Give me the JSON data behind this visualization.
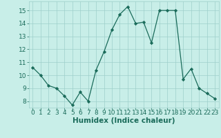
{
  "x": [
    0,
    1,
    2,
    3,
    4,
    5,
    6,
    7,
    8,
    9,
    10,
    11,
    12,
    13,
    14,
    15,
    16,
    17,
    18,
    19,
    20,
    21,
    22,
    23
  ],
  "y": [
    10.6,
    10.0,
    9.2,
    9.0,
    8.4,
    7.7,
    8.7,
    8.0,
    10.4,
    11.8,
    13.5,
    14.7,
    15.3,
    14.0,
    14.1,
    12.5,
    15.0,
    15.0,
    15.0,
    9.7,
    10.5,
    9.0,
    8.6,
    8.2
  ],
  "xlabel": "Humidex (Indice chaleur)",
  "xlim": [
    -0.5,
    23.5
  ],
  "ylim": [
    7.5,
    15.7
  ],
  "yticks": [
    8,
    9,
    10,
    11,
    12,
    13,
    14,
    15
  ],
  "xticks": [
    0,
    1,
    2,
    3,
    4,
    5,
    6,
    7,
    8,
    9,
    10,
    11,
    12,
    13,
    14,
    15,
    16,
    17,
    18,
    19,
    20,
    21,
    22,
    23
  ],
  "line_color": "#1a6b5a",
  "marker_color": "#1a6b5a",
  "bg_color": "#c8eee8",
  "grid_color": "#9ecfca",
  "tick_label_color": "#1a6b5a",
  "xlabel_color": "#1a6b5a",
  "tick_fontsize": 6.5,
  "xlabel_fontsize": 7.5
}
